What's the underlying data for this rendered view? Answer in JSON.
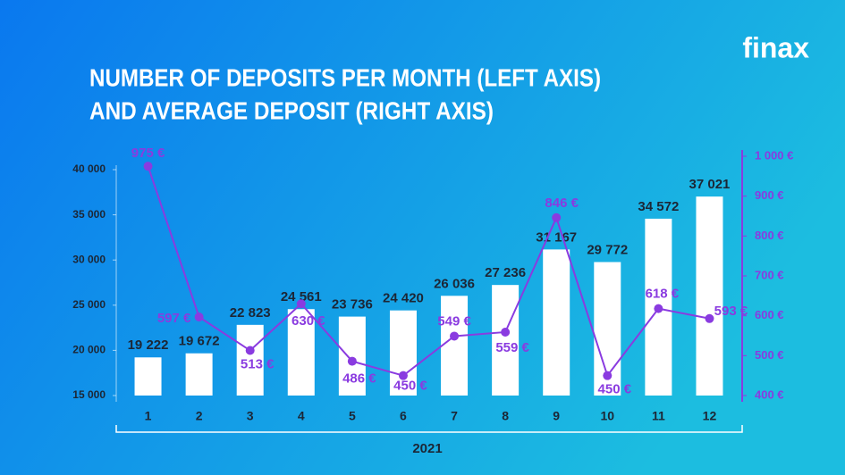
{
  "chart_data": {
    "type": "bar",
    "brand": "finax",
    "title": [
      "NUMBER OF DEPOSITS PER MONTH (LEFT AXIS)",
      "AND AVERAGE DEPOSIT (RIGHT AXIS)"
    ],
    "x_label": "2021",
    "categories": [
      "1",
      "2",
      "3",
      "4",
      "5",
      "6",
      "7",
      "8",
      "9",
      "10",
      "11",
      "12"
    ],
    "series": [
      {
        "name": "Number of deposits",
        "type": "bar",
        "color": "#ffffff",
        "label_color": "#1c2635",
        "values": [
          19222,
          19672,
          22823,
          24561,
          23736,
          24420,
          26036,
          27236,
          31167,
          29772,
          34572,
          37021
        ],
        "value_labels": [
          "19 222",
          "19 672",
          "22 823",
          "24 561",
          "23 736",
          "24 420",
          "26 036",
          "27 236",
          "31 167",
          "29 772",
          "34 572",
          "37 021"
        ]
      },
      {
        "name": "Average deposit",
        "type": "line",
        "axis": "y2",
        "color": "#8a3be0",
        "values": [
          975,
          597,
          513,
          630,
          486,
          450,
          549,
          559,
          846,
          450,
          618,
          593
        ],
        "value_labels": [
          "975 €",
          "597 €",
          "513 €",
          "630 €",
          "486 €",
          "450 €",
          "549 €",
          "559 €",
          "846 €",
          "450 €",
          "618 €",
          "593 €"
        ]
      }
    ],
    "ylim": [
      15000,
      40000
    ],
    "yticks": [
      {
        "value": 15000,
        "label": "15 000"
      },
      {
        "value": 20000,
        "label": "20 000"
      },
      {
        "value": 25000,
        "label": "25 000"
      },
      {
        "value": 30000,
        "label": "30 000"
      },
      {
        "value": 35000,
        "label": "35 000"
      },
      {
        "value": 40000,
        "label": "40 000"
      }
    ],
    "y2lim": [
      400,
      1000
    ],
    "y2ticks": [
      {
        "value": 400,
        "label": "400 €"
      },
      {
        "value": 500,
        "label": "500 €"
      },
      {
        "value": 600,
        "label": "600 €"
      },
      {
        "value": 700,
        "label": "700 €"
      },
      {
        "value": 800,
        "label": "800 €"
      },
      {
        "value": 900,
        "label": "900 €"
      },
      {
        "value": 1000,
        "label": "1 000 €"
      }
    ],
    "grid": false
  }
}
